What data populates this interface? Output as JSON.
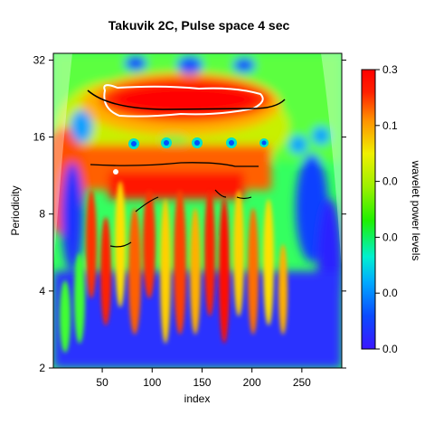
{
  "chart_data": {
    "type": "heatmap",
    "title": "Takuvik 2C, Pulse space 4 sec",
    "xlabel": "index",
    "ylabel": "Periodicity",
    "xlim": [
      1,
      290
    ],
    "ylim": [
      2,
      34
    ],
    "y_scale": "log2",
    "x_ticks": [
      50,
      100,
      150,
      200,
      250
    ],
    "y_ticks": [
      2,
      4,
      8,
      16,
      32
    ],
    "colorbar": {
      "label": "wavelet power levels",
      "tick_labels": [
        "0.0",
        "0.0",
        "0.0",
        "0.0",
        "0.1",
        "0.3"
      ],
      "colors": [
        "#3b16ff",
        "#0a4bff",
        "#00aaff",
        "#00f0d0",
        "#1ff000",
        "#9cf000",
        "#f0f000",
        "#ff9000",
        "#ff2000",
        "#ff0000"
      ]
    },
    "features": {
      "high_power_band": {
        "x": [
          62,
          215
        ],
        "period_center": 23,
        "level": "0.3"
      },
      "ridge_period_16": {
        "x": [
          80,
          180,
          200
        ],
        "period": 16
      },
      "ridge_period_13": {
        "x": [
          60,
          230
        ],
        "period": 13
      }
    }
  }
}
